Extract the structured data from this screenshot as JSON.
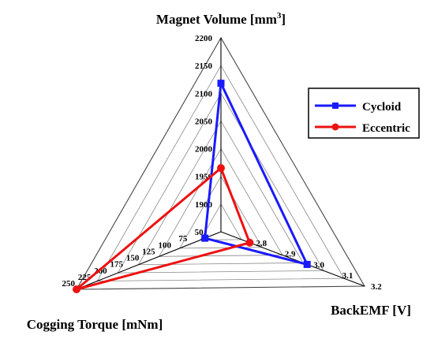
{
  "chart_data": {
    "type": "radar",
    "axes": [
      {
        "key": "magnet_volume",
        "label": "Magnet Volume [mm",
        "label_sup": "3",
        "label_close": "]",
        "min": 1850,
        "max": 2200,
        "ticks": [
          "1900",
          "1950",
          "2000",
          "2050",
          "2100",
          "2150",
          "2200"
        ],
        "tick_values": [
          1900,
          1950,
          2000,
          2050,
          2100,
          2150,
          2200
        ]
      },
      {
        "key": "backemf",
        "label": "BackEMF [V]",
        "min": 2.7,
        "max": 3.2,
        "ticks": [
          "2.8",
          "2.9",
          "3.0",
          "3.1",
          "3.2"
        ],
        "tick_values": [
          2.8,
          2.9,
          3.0,
          3.1,
          3.2
        ]
      },
      {
        "key": "cogging_torque",
        "label": "Cogging Torque [mNm]",
        "min": 25,
        "max": 250,
        "ticks": [
          "50",
          "75",
          "100",
          "125",
          "150",
          "175",
          "200",
          "225",
          "250"
        ],
        "tick_values": [
          50,
          75,
          100,
          125,
          150,
          175,
          200,
          225,
          250
        ]
      }
    ],
    "grid_rings": 7,
    "series": [
      {
        "name": "Cycloid",
        "color": "#1a1aff",
        "marker": "square",
        "values": {
          "magnet_volume": 2118,
          "backemf": 3.0,
          "cogging_torque": 50
        }
      },
      {
        "name": "Eccentric",
        "color": "#ee1111",
        "marker": "circle",
        "values": {
          "magnet_volume": 1965,
          "backemf": 2.8,
          "cogging_torque": 250
        }
      }
    ],
    "legend": "right"
  }
}
